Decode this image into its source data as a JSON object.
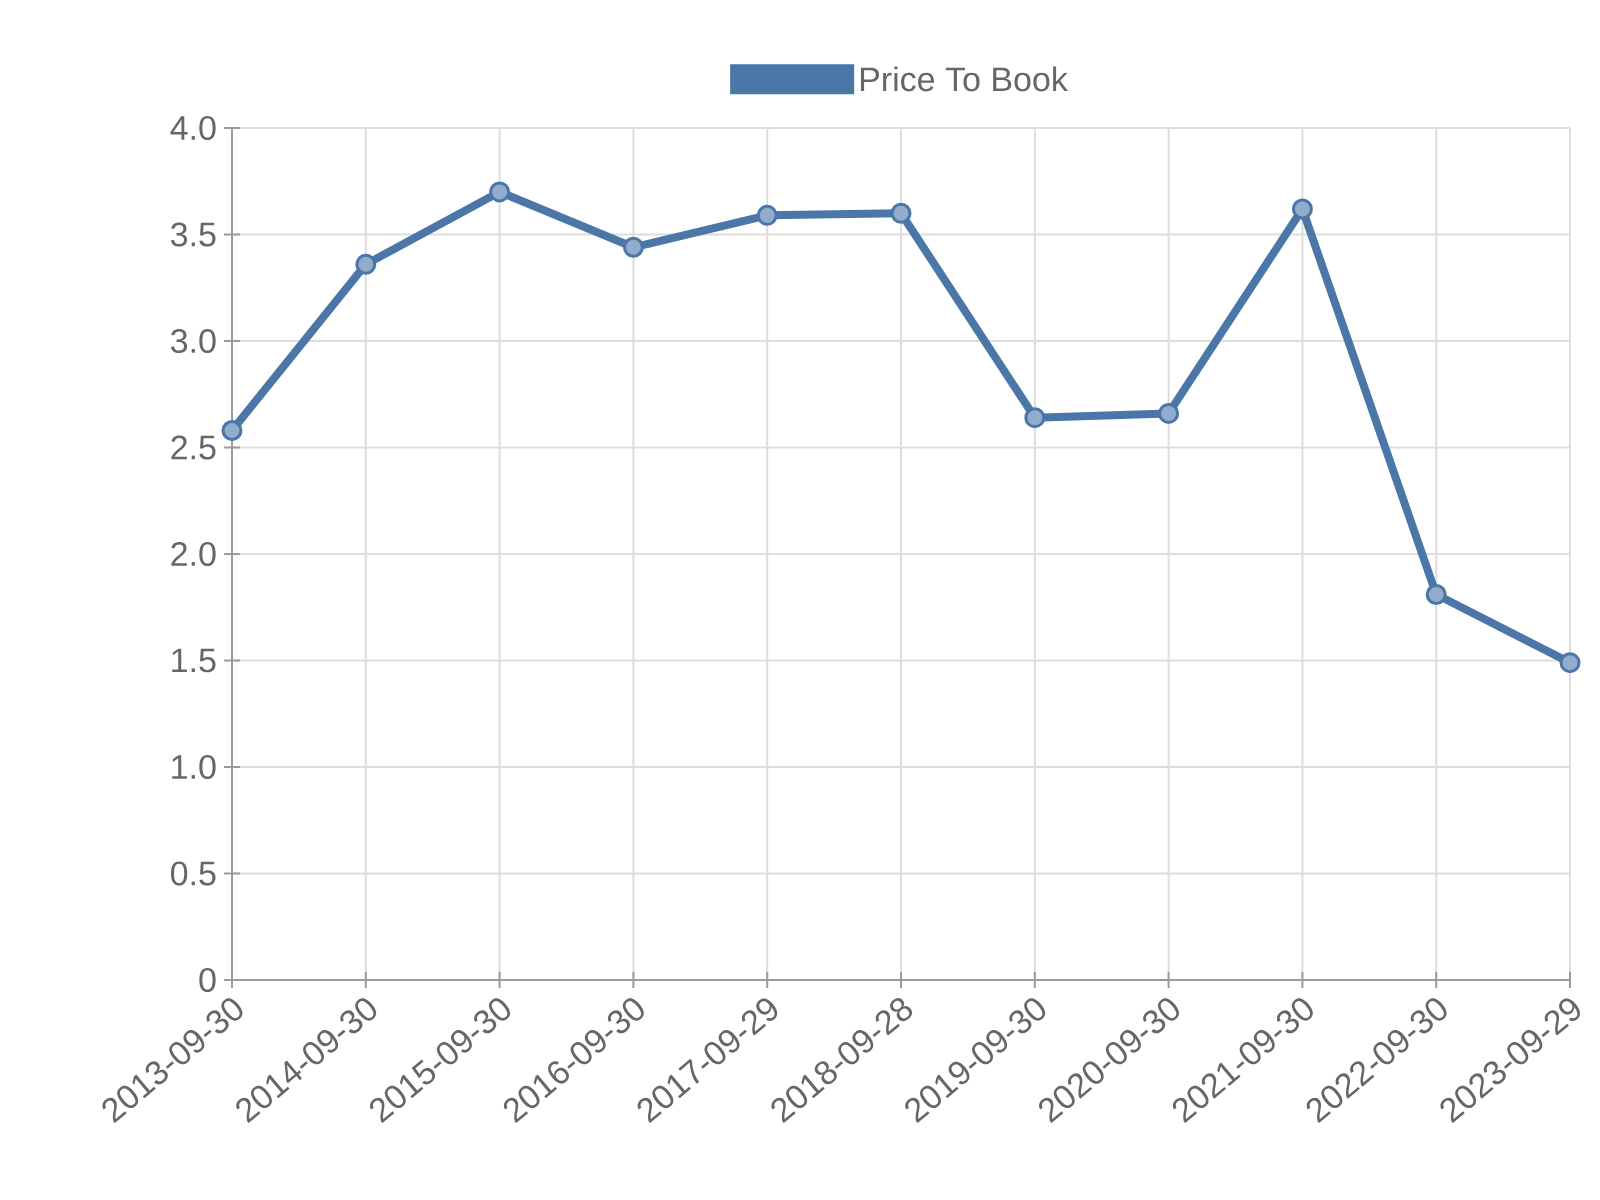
{
  "chart_data": {
    "type": "line",
    "categories": [
      "2013-09-30",
      "2014-09-30",
      "2015-09-30",
      "2016-09-30",
      "2017-09-29",
      "2018-09-28",
      "2019-09-30",
      "2020-09-30",
      "2021-09-30",
      "2022-09-30",
      "2023-09-29"
    ],
    "series": [
      {
        "name": "Price To Book",
        "color": "#4a76a8",
        "values": [
          2.58,
          3.36,
          3.7,
          3.44,
          3.59,
          3.6,
          2.64,
          2.66,
          3.62,
          1.81,
          1.49
        ]
      }
    ],
    "ylim": [
      0,
      4
    ],
    "yticks": [
      0,
      0.5,
      {
        "value": 1,
        "label": "1.0"
      },
      1.5,
      {
        "value": 2,
        "label": "2.0"
      },
      2.5,
      {
        "value": 3,
        "label": "3.0"
      },
      3.5,
      {
        "value": 4,
        "label": "4.0"
      }
    ],
    "grid": true,
    "legend": "top",
    "marker": "circle",
    "line_style": "solid"
  }
}
